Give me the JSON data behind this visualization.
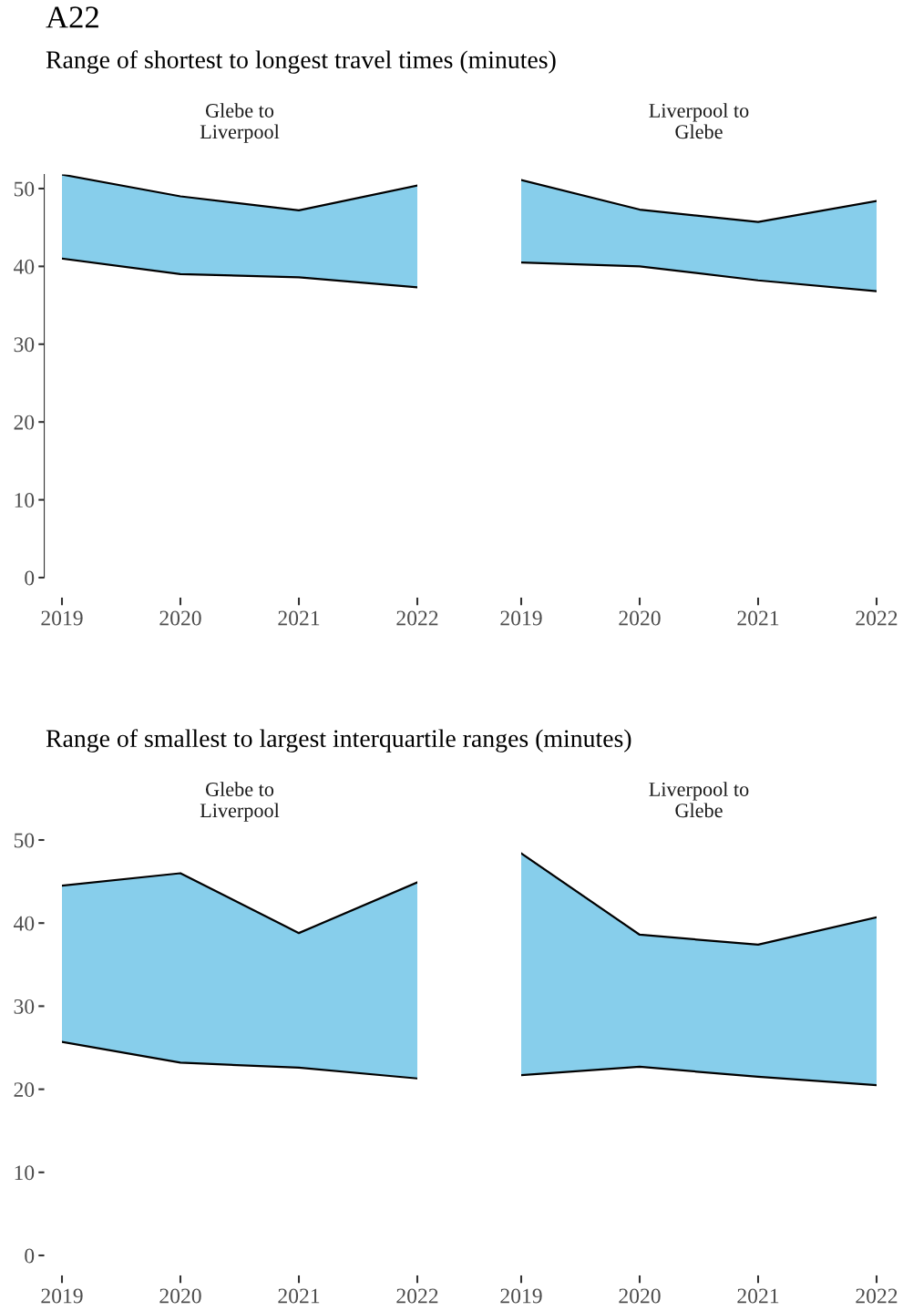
{
  "chart_data": [
    {
      "type": "area",
      "title": "A22",
      "subtitle": "Range of shortest to longest travel times (minutes)",
      "annotations": [
        "Glebe to\nLiverpool"
      ],
      "x": [
        2019,
        2020,
        2021,
        2022
      ],
      "series": [
        {
          "type": "line",
          "color": "#000000",
          "values": [
            41.0,
            39.0,
            38.6,
            37.3
          ]
        },
        {
          "color": "#87ceeb",
          "values": [
            51.8,
            49.0,
            47.2,
            50.4
          ]
        }
      ],
      "xlim": [
        2019,
        2022
      ],
      "xticks": [
        2019,
        2020,
        2021,
        2022
      ],
      "ylim": [
        0,
        51.8
      ],
      "yticks": [
        0,
        10,
        20,
        30,
        40,
        50
      ]
    },
    {
      "type": "area",
      "annotations": [
        "Liverpool to\nGlebe"
      ],
      "x": [
        2019,
        2020,
        2021,
        2022
      ],
      "series": [
        {
          "type": "line",
          "color": "#000000",
          "values": [
            40.5,
            40.0,
            38.2,
            36.8
          ]
        },
        {
          "color": "#87ceeb",
          "values": [
            51.1,
            47.3,
            45.7,
            48.4
          ]
        }
      ],
      "xlim": [
        2019,
        2022
      ],
      "xticks": [
        2019,
        2020,
        2021,
        2022
      ],
      "yticks": [
        0,
        10,
        20,
        30,
        40,
        50
      ],
      "tick_labels": "x"
    },
    {
      "type": "area",
      "subtitle": "Range of smallest to largest interquartile ranges (minutes)",
      "annotations": [
        "Glebe to\nLiverpool"
      ],
      "x": [
        2019,
        2020,
        2021,
        2022
      ],
      "series": [
        {
          "type": "line",
          "color": "#000000",
          "values": [
            25.7,
            23.2,
            22.6,
            21.3
          ]
        },
        {
          "color": "#87ceeb",
          "values": [
            44.5,
            46.0,
            38.8,
            44.9
          ]
        }
      ],
      "xlim": [
        2019,
        2022
      ],
      "xticks": [
        2019,
        2020,
        2021,
        2022
      ],
      "ylim": [
        0,
        50
      ],
      "yticks": [
        0,
        10,
        20,
        30,
        40,
        50
      ]
    },
    {
      "type": "area",
      "annotations": [
        "Liverpool to\nGlebe"
      ],
      "x": [
        2019,
        2020,
        2021,
        2022
      ],
      "series": [
        {
          "type": "line",
          "color": "#000000",
          "values": [
            21.7,
            22.7,
            21.5,
            20.5
          ]
        },
        {
          "color": "#87ceeb",
          "values": [
            48.4,
            38.6,
            37.4,
            40.7
          ]
        }
      ],
      "xlim": [
        2019,
        2022
      ],
      "xticks": [
        2019,
        2020,
        2021,
        2022
      ],
      "ylim": [
        0,
        50
      ],
      "yticks": [
        0,
        10,
        20,
        30,
        40,
        50
      ],
      "tick_labels": "x"
    }
  ]
}
